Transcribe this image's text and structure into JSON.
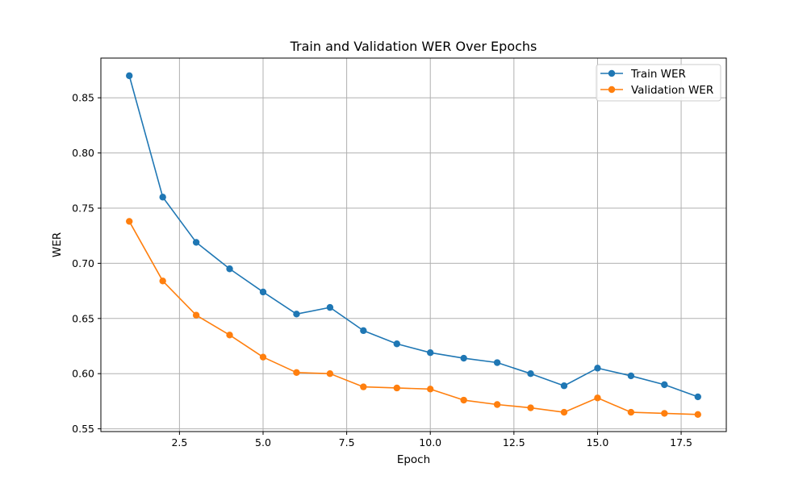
{
  "chart_data": {
    "type": "line",
    "title": "Train and Validation WER Over Epochs",
    "xlabel": "Epoch",
    "ylabel": "WER",
    "xlim": [
      0.15,
      18.85
    ],
    "ylim": [
      0.5475,
      0.886
    ],
    "x_ticks": [
      2.5,
      5.0,
      7.5,
      10.0,
      12.5,
      15.0,
      17.5
    ],
    "x_tick_labels": [
      "2.5",
      "5.0",
      "7.5",
      "10.0",
      "12.5",
      "15.0",
      "17.5"
    ],
    "y_ticks": [
      0.55,
      0.6,
      0.65,
      0.7,
      0.75,
      0.8,
      0.85
    ],
    "y_tick_labels": [
      "0.55",
      "0.60",
      "0.65",
      "0.70",
      "0.75",
      "0.80",
      "0.85"
    ],
    "grid": true,
    "legend_position": "top-right",
    "x": [
      1,
      2,
      3,
      4,
      5,
      6,
      7,
      8,
      9,
      10,
      11,
      12,
      13,
      14,
      15,
      16,
      17,
      18
    ],
    "series": [
      {
        "name": "Train WER",
        "color": "#1f77b4",
        "values": [
          0.87,
          0.76,
          0.719,
          0.695,
          0.674,
          0.654,
          0.66,
          0.639,
          0.627,
          0.619,
          0.614,
          0.61,
          0.6,
          0.589,
          0.605,
          0.598,
          0.59,
          0.579
        ]
      },
      {
        "name": "Validation WER",
        "color": "#ff7f0e",
        "values": [
          0.738,
          0.684,
          0.653,
          0.635,
          0.615,
          0.601,
          0.6,
          0.588,
          0.587,
          0.586,
          0.576,
          0.572,
          0.569,
          0.565,
          0.578,
          0.565,
          0.564,
          0.563
        ]
      }
    ]
  }
}
